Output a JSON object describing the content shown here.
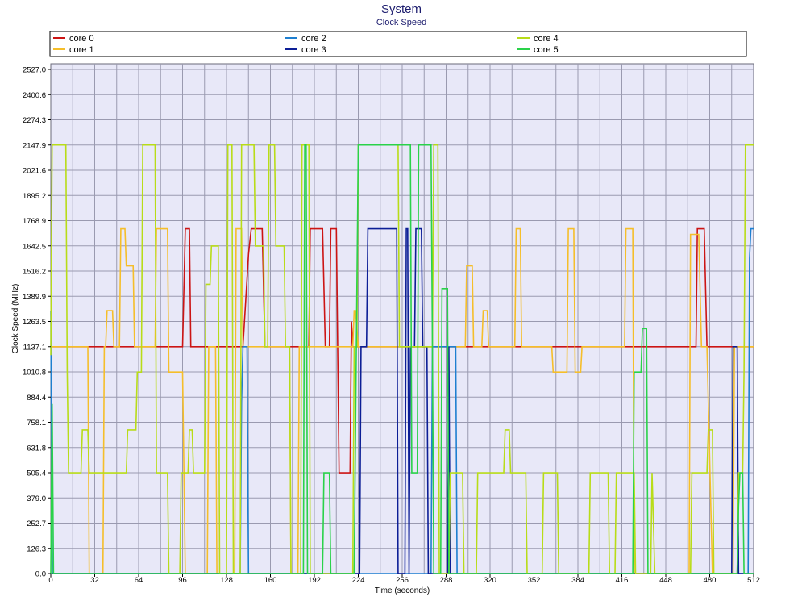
{
  "chart_data": {
    "type": "line",
    "title": "System",
    "subtitle": "Clock Speed",
    "xlabel": "Time (seconds)",
    "ylabel": "Clock Speed (MHz)",
    "xlim": [
      0,
      512
    ],
    "ylim": [
      0,
      2527
    ],
    "x_ticks": [
      0,
      32,
      64,
      96,
      128,
      160,
      192,
      224,
      256,
      288,
      320,
      352,
      384,
      416,
      448,
      480,
      512
    ],
    "y_ticks": [
      "0.0",
      "126.3",
      "252.7",
      "379.0",
      "505.4",
      "631.8",
      "758.1",
      "884.4",
      "1010.8",
      "1137.1",
      "1263.5",
      "1389.9",
      "1516.2",
      "1642.5",
      "1768.9",
      "1895.2",
      "2021.6",
      "2147.9",
      "2274.3",
      "2400.6",
      "2527.0"
    ],
    "grid": true,
    "legend_position": "top",
    "colors": {
      "plot_background": "#e8e8f8",
      "grid": "#9a9ab0"
    },
    "series": [
      {
        "name": "core 0",
        "color": "#cc1414",
        "points": [
          [
            0,
            1137
          ],
          [
            94,
            1137
          ],
          [
            95,
            1137
          ],
          [
            96,
            1137
          ],
          [
            98,
            1728
          ],
          [
            101,
            1728
          ],
          [
            102,
            1137
          ],
          [
            140,
            1137
          ],
          [
            144,
            1600
          ],
          [
            146,
            1728
          ],
          [
            154,
            1728
          ],
          [
            156,
            1137
          ],
          [
            188,
            1137
          ],
          [
            189,
            1728
          ],
          [
            198,
            1728
          ],
          [
            200,
            1137
          ],
          [
            203,
            1137
          ],
          [
            204,
            1728
          ],
          [
            208,
            1728
          ],
          [
            210,
            505
          ],
          [
            218,
            505
          ],
          [
            219,
            1263
          ],
          [
            220,
            1137
          ],
          [
            290,
            1137
          ],
          [
            291,
            1137
          ],
          [
            320,
            1137
          ],
          [
            370,
            1137
          ],
          [
            426,
            1137
          ],
          [
            428,
            1137
          ],
          [
            470,
            1137
          ],
          [
            471,
            1728
          ],
          [
            476,
            1728
          ],
          [
            478,
            1137
          ],
          [
            512,
            1137
          ]
        ]
      },
      {
        "name": "core 1",
        "color": "#f5be2a",
        "points": [
          [
            0,
            1137
          ],
          [
            27,
            1137
          ],
          [
            28,
            0
          ],
          [
            38,
            0
          ],
          [
            39,
            1137
          ],
          [
            40,
            1137
          ],
          [
            41,
            1318
          ],
          [
            45,
            1318
          ],
          [
            46,
            1137
          ],
          [
            50,
            1137
          ],
          [
            51,
            1728
          ],
          [
            54,
            1728
          ],
          [
            55,
            1542
          ],
          [
            60,
            1542
          ],
          [
            61,
            1137
          ],
          [
            76,
            1137
          ],
          [
            77,
            1728
          ],
          [
            85,
            1728
          ],
          [
            86,
            1010
          ],
          [
            96,
            1010
          ],
          [
            98,
            0
          ],
          [
            114,
            0
          ],
          [
            115,
            1137
          ],
          [
            120,
            1137
          ],
          [
            121,
            0
          ],
          [
            134,
            0
          ],
          [
            135,
            1728
          ],
          [
            139,
            1728
          ],
          [
            140,
            1137
          ],
          [
            174,
            1137
          ],
          [
            175,
            0
          ],
          [
            180,
            0
          ],
          [
            181,
            1137
          ],
          [
            220,
            1137
          ],
          [
            221,
            1318
          ],
          [
            222,
            1318
          ],
          [
            224,
            1137
          ],
          [
            278,
            1137
          ],
          [
            280,
            1137
          ],
          [
            302,
            1137
          ],
          [
            303,
            1542
          ],
          [
            307,
            1542
          ],
          [
            308,
            1137
          ],
          [
            314,
            1137
          ],
          [
            315,
            1318
          ],
          [
            318,
            1318
          ],
          [
            319,
            1137
          ],
          [
            338,
            1137
          ],
          [
            339,
            1728
          ],
          [
            342,
            1728
          ],
          [
            343,
            1137
          ],
          [
            365,
            1137
          ],
          [
            366,
            1010
          ],
          [
            376,
            1010
          ],
          [
            377,
            1728
          ],
          [
            381,
            1728
          ],
          [
            382,
            1010
          ],
          [
            386,
            1010
          ],
          [
            387,
            1137
          ],
          [
            418,
            1137
          ],
          [
            419,
            1728
          ],
          [
            424,
            1728
          ],
          [
            425,
            0
          ],
          [
            465,
            0
          ],
          [
            466,
            1700
          ],
          [
            472,
            1700
          ],
          [
            474,
            1137
          ],
          [
            478,
            1137
          ],
          [
            482,
            0
          ],
          [
            497,
            0
          ],
          [
            498,
            1137
          ],
          [
            512,
            1137
          ]
        ]
      },
      {
        "name": "core 2",
        "color": "#1e7fd0",
        "points": [
          [
            0,
            1318
          ],
          [
            1,
            0
          ],
          [
            138,
            0
          ],
          [
            139,
            860
          ],
          [
            140,
            1137
          ],
          [
            143,
            1137
          ],
          [
            144,
            0
          ],
          [
            277,
            0
          ],
          [
            278,
            1137
          ],
          [
            295,
            1137
          ],
          [
            296,
            0
          ],
          [
            508,
            0
          ],
          [
            509,
            1580
          ],
          [
            510,
            1728
          ],
          [
            512,
            1728
          ]
        ]
      },
      {
        "name": "core 3",
        "color": "#0c1e96",
        "points": [
          [
            0,
            0
          ],
          [
            225,
            0
          ],
          [
            226,
            1137
          ],
          [
            230,
            1137
          ],
          [
            231,
            1728
          ],
          [
            252,
            1728
          ],
          [
            253,
            0
          ],
          [
            258,
            0
          ],
          [
            259,
            1728
          ],
          [
            260,
            1728
          ],
          [
            261,
            0
          ],
          [
            262,
            1137
          ],
          [
            265,
            1137
          ],
          [
            266,
            1728
          ],
          [
            270,
            1728
          ],
          [
            271,
            1137
          ],
          [
            274,
            1137
          ],
          [
            275,
            0
          ],
          [
            289,
            0
          ],
          [
            290,
            1137
          ],
          [
            291,
            0
          ],
          [
            496,
            0
          ],
          [
            497,
            1137
          ],
          [
            500,
            1137
          ],
          [
            501,
            0
          ],
          [
            512,
            0
          ]
        ]
      },
      {
        "name": "core 4",
        "color": "#b8dc18",
        "points": [
          [
            0,
            1095
          ],
          [
            1,
            2148
          ],
          [
            11,
            2148
          ],
          [
            12,
            1010
          ],
          [
            13,
            505
          ],
          [
            22,
            505
          ],
          [
            23,
            720
          ],
          [
            27,
            720
          ],
          [
            28,
            505
          ],
          [
            55,
            505
          ],
          [
            56,
            720
          ],
          [
            62,
            720
          ],
          [
            63,
            1010
          ],
          [
            66,
            1010
          ],
          [
            67,
            2148
          ],
          [
            76,
            2148
          ],
          [
            77,
            505
          ],
          [
            85,
            505
          ],
          [
            86,
            0
          ],
          [
            94,
            0
          ],
          [
            95,
            505
          ],
          [
            100,
            505
          ],
          [
            101,
            720
          ],
          [
            103,
            720
          ],
          [
            104,
            505
          ],
          [
            112,
            505
          ],
          [
            113,
            1450
          ],
          [
            116,
            1450
          ],
          [
            117,
            1642
          ],
          [
            122,
            1642
          ],
          [
            123,
            0
          ],
          [
            128,
            0
          ],
          [
            129,
            2148
          ],
          [
            132,
            2148
          ],
          [
            133,
            0
          ],
          [
            138,
            0
          ],
          [
            139,
            2148
          ],
          [
            148,
            2148
          ],
          [
            149,
            1642
          ],
          [
            155,
            1642
          ],
          [
            156,
            1137
          ],
          [
            158,
            1137
          ],
          [
            159,
            2148
          ],
          [
            163,
            2148
          ],
          [
            164,
            1642
          ],
          [
            170,
            1642
          ],
          [
            171,
            1137
          ],
          [
            174,
            1137
          ],
          [
            175,
            0
          ],
          [
            182,
            0
          ],
          [
            183,
            2148
          ],
          [
            188,
            2148
          ],
          [
            189,
            0
          ],
          [
            220,
            0
          ],
          [
            221,
            1137
          ],
          [
            223,
            1137
          ],
          [
            224,
            2148
          ],
          [
            253,
            2148
          ],
          [
            254,
            1137
          ],
          [
            278,
            1137
          ],
          [
            279,
            2148
          ],
          [
            282,
            2148
          ],
          [
            283,
            0
          ],
          [
            290,
            0
          ],
          [
            291,
            505
          ],
          [
            300,
            505
          ],
          [
            301,
            0
          ],
          [
            310,
            0
          ],
          [
            311,
            505
          ],
          [
            330,
            505
          ],
          [
            331,
            720
          ],
          [
            334,
            720
          ],
          [
            335,
            505
          ],
          [
            346,
            505
          ],
          [
            347,
            0
          ],
          [
            358,
            0
          ],
          [
            359,
            505
          ],
          [
            369,
            505
          ],
          [
            370,
            0
          ],
          [
            392,
            0
          ],
          [
            393,
            505
          ],
          [
            406,
            505
          ],
          [
            407,
            0
          ],
          [
            411,
            0
          ],
          [
            412,
            505
          ],
          [
            425,
            505
          ],
          [
            426,
            0
          ],
          [
            437,
            0
          ],
          [
            438,
            505
          ],
          [
            440,
            0
          ],
          [
            466,
            0
          ],
          [
            467,
            505
          ],
          [
            478,
            505
          ],
          [
            479,
            720
          ],
          [
            482,
            720
          ],
          [
            483,
            0
          ],
          [
            500,
            0
          ],
          [
            501,
            505
          ],
          [
            504,
            505
          ],
          [
            505,
            1010
          ],
          [
            506,
            2148
          ],
          [
            512,
            2148
          ]
        ]
      },
      {
        "name": "core 5",
        "color": "#2ad24a",
        "points": [
          [
            0,
            0
          ],
          [
            1,
            850
          ],
          [
            2,
            0
          ],
          [
            184,
            0
          ],
          [
            185,
            2148
          ],
          [
            186,
            2148
          ],
          [
            187,
            0
          ],
          [
            198,
            0
          ],
          [
            199,
            505
          ],
          [
            203,
            505
          ],
          [
            204,
            0
          ],
          [
            221,
            0
          ],
          [
            224,
            2148
          ],
          [
            262,
            2148
          ],
          [
            263,
            505
          ],
          [
            267,
            505
          ],
          [
            268,
            2148
          ],
          [
            277,
            2148
          ],
          [
            278,
            1137
          ],
          [
            279,
            0
          ],
          [
            284,
            0
          ],
          [
            285,
            1428
          ],
          [
            289,
            1428
          ],
          [
            290,
            0
          ],
          [
            424,
            0
          ],
          [
            425,
            1010
          ],
          [
            430,
            1010
          ],
          [
            431,
            1228
          ],
          [
            434,
            1228
          ],
          [
            435,
            0
          ],
          [
            500,
            0
          ],
          [
            501,
            339
          ],
          [
            502,
            505
          ],
          [
            504,
            505
          ],
          [
            505,
            0
          ],
          [
            512,
            0
          ]
        ]
      }
    ]
  }
}
